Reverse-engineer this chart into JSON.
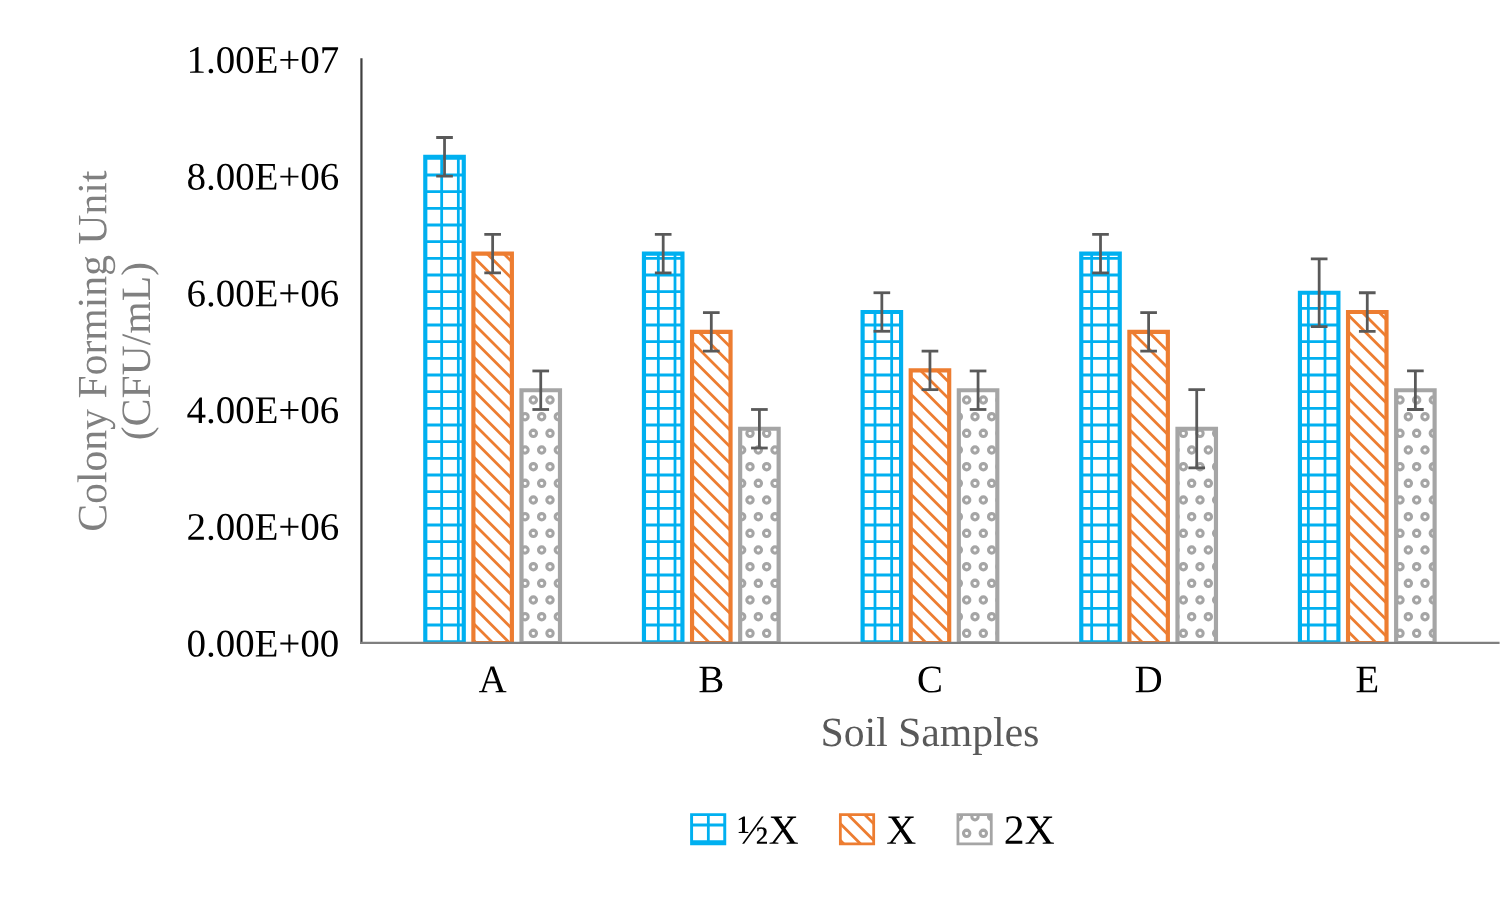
{
  "chart_data": {
    "type": "bar",
    "xlabel": "Soil Samples",
    "ylabel": "Colony Forming Unit\n(CFU/mL)",
    "categories": [
      "A",
      "B",
      "C",
      "D",
      "E"
    ],
    "series": [
      {
        "name": "½X",
        "color": "#00b0f0",
        "values": [
          8330000,
          6670000,
          5670000,
          6670000,
          6000000
        ],
        "errors": [
          330000,
          330000,
          330000,
          330000,
          580000
        ]
      },
      {
        "name": "X",
        "color": "#ed7d31",
        "values": [
          6670000,
          5330000,
          4670000,
          5330000,
          5670000
        ],
        "errors": [
          330000,
          330000,
          330000,
          330000,
          330000
        ]
      },
      {
        "name": "2X",
        "color": "#a5a5a5",
        "values": [
          4330000,
          3670000,
          4330000,
          3670000,
          4330000
        ],
        "errors": [
          330000,
          330000,
          330000,
          670000,
          330000
        ]
      }
    ],
    "ylim": [
      0,
      10000000
    ],
    "yticks": [
      {
        "value": 0,
        "label": "0.00E+00"
      },
      {
        "value": 2000000,
        "label": "2.00E+06"
      },
      {
        "value": 4000000,
        "label": "4.00E+06"
      },
      {
        "value": 6000000,
        "label": "6.00E+06"
      },
      {
        "value": 8000000,
        "label": "8.00E+06"
      },
      {
        "value": 10000000,
        "label": "1.00E+07"
      }
    ],
    "grid": false,
    "legend": "bottom"
  }
}
